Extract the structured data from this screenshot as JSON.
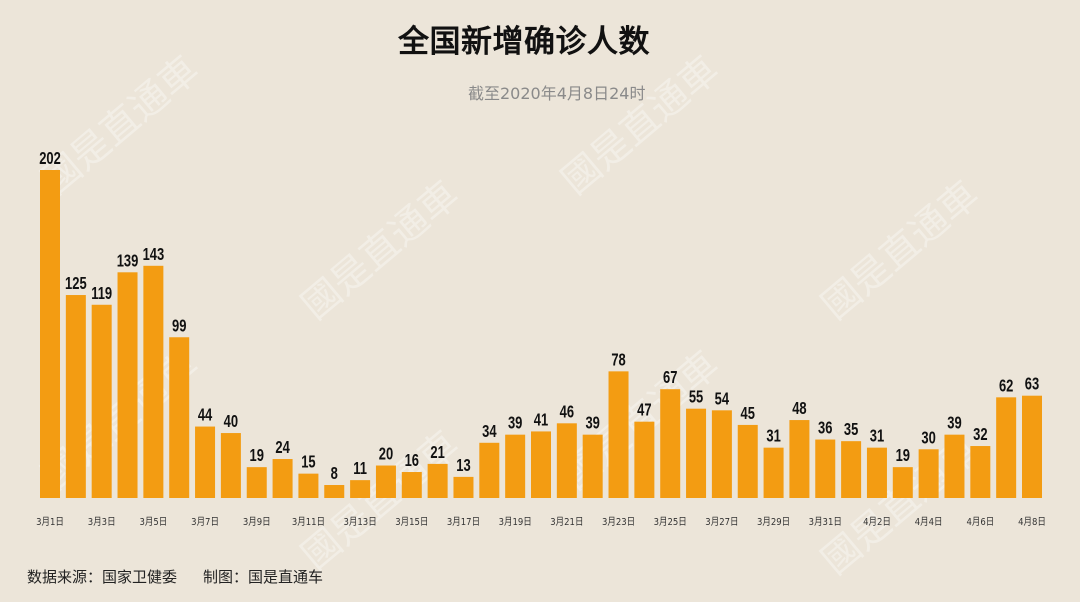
{
  "watermark": "國是直通車",
  "colors": {
    "background": "#ece5d9",
    "bar": "#f39c12",
    "label": "#111111",
    "tick": "#333333",
    "subtitle": "#8a8a8a"
  },
  "footer": {
    "source": "数据来源：国家卫健委",
    "credit": "制图：国是直通车"
  },
  "chart_data": {
    "type": "bar",
    "title": "全国新增确诊人数",
    "subtitle": "截至2020年4月8日24时",
    "categories": [
      "3月1日",
      "",
      "3月3日",
      "",
      "3月5日",
      "",
      "3月7日",
      "",
      "3月9日",
      "",
      "3月11日",
      "",
      "3月13日",
      "",
      "3月15日",
      "",
      "3月17日",
      "",
      "3月19日",
      "",
      "3月21日",
      "",
      "3月23日",
      "",
      "3月25日",
      "",
      "3月27日",
      "",
      "3月29日",
      "",
      "3月31日",
      "",
      "4月2日",
      "",
      "4月4日",
      "",
      "4月6日",
      "",
      "4月8日"
    ],
    "values": [
      202,
      125,
      119,
      139,
      143,
      99,
      44,
      40,
      19,
      24,
      15,
      8,
      11,
      20,
      16,
      21,
      13,
      34,
      39,
      41,
      46,
      39,
      78,
      47,
      67,
      55,
      54,
      45,
      31,
      48,
      36,
      35,
      31,
      19,
      30,
      39,
      32,
      62,
      63
    ],
    "xlabel": "",
    "ylabel": "",
    "grid": false,
    "data_labels": true
  }
}
